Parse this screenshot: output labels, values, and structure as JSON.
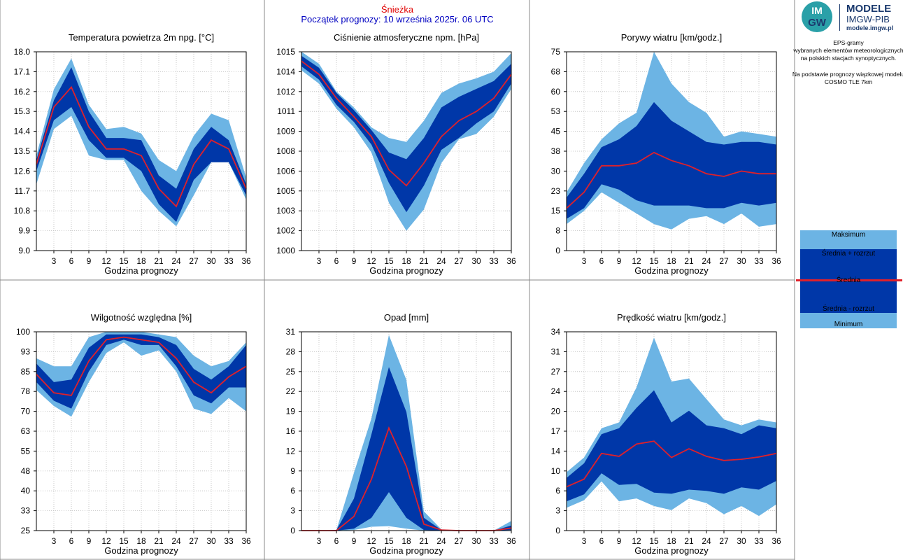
{
  "header": {
    "station": "Śnieżka",
    "run": "Początek prognozy: 10 września 2025r. 06 UTC"
  },
  "logo": {
    "mark_top": "IM",
    "mark_bottom": "GW",
    "title": "MODELE",
    "org": "IMGW-PIB",
    "site": "modele.imgw.pl"
  },
  "info": {
    "line1": "EPS-gramy",
    "line2": "wybranych elementów meteorologicznych",
    "line3": "na polskich stacjach  synoptycznych.",
    "line4": "Na podstawie prognozy wiązkowej modelu",
    "line5": "COSMO TLE 7km"
  },
  "legend": {
    "max": "Maksimum",
    "mean_plus": "Średnia + rozrzut",
    "mean": "Średnia",
    "mean_minus": "Średnia - rozrzut",
    "min": "Minimum"
  },
  "colors": {
    "outer_band": "#6cb4e4",
    "inner_band": "#0037a8",
    "mean_line": "#e0202a",
    "grid": "#bbbbbb"
  },
  "chart_data": [
    {
      "id": "temperature",
      "type": "area",
      "title": "Temperatura powietrza 2m npg. [°C]",
      "xlabel": "Godzina prognozy",
      "ylabel": "",
      "x": [
        0,
        3,
        6,
        9,
        12,
        15,
        18,
        21,
        24,
        27,
        30,
        33,
        36
      ],
      "xticks": [
        3,
        6,
        9,
        12,
        15,
        18,
        21,
        24,
        27,
        30,
        33,
        36
      ],
      "ylim": [
        9.0,
        18.0
      ],
      "yticks": [
        "9.0",
        "9.9",
        "10.8",
        "11.7",
        "12.6",
        "13.5",
        "14.4",
        "15.3",
        "16.2",
        "17.1",
        "18.0"
      ],
      "grid": true,
      "series": [
        {
          "name": "Maksimum",
          "values": [
            13.3,
            16.3,
            17.7,
            15.6,
            14.5,
            14.6,
            14.3,
            13.1,
            12.6,
            14.2,
            15.2,
            14.9,
            12.3
          ]
        },
        {
          "name": "Średnia + rozrzut",
          "values": [
            13.1,
            15.8,
            17.3,
            15.3,
            14.1,
            14.1,
            14.0,
            12.4,
            11.8,
            13.6,
            14.6,
            14.0,
            12.0
          ]
        },
        {
          "name": "Średnia",
          "values": [
            12.9,
            15.5,
            16.4,
            14.6,
            13.6,
            13.6,
            13.3,
            11.8,
            11.0,
            12.9,
            14.0,
            13.6,
            11.8
          ]
        },
        {
          "name": "Średnia - rozrzut",
          "values": [
            12.6,
            14.9,
            15.5,
            14.0,
            13.2,
            13.2,
            12.6,
            11.1,
            10.3,
            12.2,
            13.0,
            13.0,
            11.5
          ]
        },
        {
          "name": "Minimum",
          "values": [
            12.0,
            14.5,
            15.1,
            13.3,
            13.1,
            13.1,
            11.7,
            10.8,
            10.1,
            11.5,
            13.0,
            13.0,
            11.3
          ]
        }
      ]
    },
    {
      "id": "pressure",
      "type": "area",
      "title": "Ciśnienie atmosferyczne npm. [hPa]",
      "xlabel": "Godzina prognozy",
      "ylabel": "",
      "x": [
        0,
        3,
        6,
        9,
        12,
        15,
        18,
        21,
        24,
        27,
        30,
        33,
        36
      ],
      "xticks": [
        3,
        6,
        9,
        12,
        15,
        18,
        21,
        24,
        27,
        30,
        33,
        36
      ],
      "ylim": [
        1000,
        1015
      ],
      "yticks": [
        "1000",
        "1002",
        "1003",
        "1005",
        "1006",
        "1008",
        "1009",
        "1011",
        "1012",
        "1014",
        "1015"
      ],
      "grid": true,
      "series": [
        {
          "name": "Maksimum",
          "values": [
            1015.0,
            1014.1,
            1012.0,
            1010.8,
            1009.3,
            1008.5,
            1008.2,
            1009.8,
            1011.9,
            1012.6,
            1013.0,
            1013.5,
            1014.9
          ]
        },
        {
          "name": "Średnia + rozrzut",
          "values": [
            1014.7,
            1013.8,
            1011.9,
            1010.6,
            1009.1,
            1007.4,
            1006.9,
            1008.5,
            1010.8,
            1011.6,
            1012.2,
            1012.8,
            1014.1
          ]
        },
        {
          "name": "Średnia",
          "values": [
            1014.3,
            1013.3,
            1011.5,
            1010.1,
            1008.6,
            1006.1,
            1004.9,
            1006.6,
            1008.6,
            1009.8,
            1010.5,
            1011.5,
            1013.3
          ]
        },
        {
          "name": "Średnia - rozrzut",
          "values": [
            1013.9,
            1012.9,
            1011.0,
            1009.7,
            1008.0,
            1005.1,
            1002.9,
            1004.9,
            1007.6,
            1008.5,
            1009.6,
            1010.5,
            1012.6
          ]
        },
        {
          "name": "Minimum",
          "values": [
            1013.6,
            1012.6,
            1010.7,
            1009.3,
            1007.4,
            1003.6,
            1001.5,
            1003.1,
            1006.6,
            1008.4,
            1008.8,
            1010.1,
            1012.2
          ]
        }
      ]
    },
    {
      "id": "gusts",
      "type": "area",
      "title": "Porywy wiatru [km/godz.]",
      "xlabel": "Godzina prognozy",
      "ylabel": "",
      "x": [
        0,
        3,
        6,
        9,
        12,
        15,
        18,
        21,
        24,
        27,
        30,
        33,
        36
      ],
      "xticks": [
        3,
        6,
        9,
        12,
        15,
        18,
        21,
        24,
        27,
        30,
        33,
        36
      ],
      "ylim": [
        0,
        75
      ],
      "yticks": [
        "0",
        "8",
        "15",
        "23",
        "30",
        "38",
        "45",
        "53",
        "60",
        "68",
        "75"
      ],
      "grid": true,
      "series": [
        {
          "name": "Maksimum",
          "values": [
            22,
            33,
            42,
            48,
            52,
            75,
            63,
            56,
            52,
            43,
            45,
            44,
            43
          ]
        },
        {
          "name": "Średnia + rozrzut",
          "values": [
            20,
            29,
            39,
            42,
            47,
            56,
            49,
            45,
            41,
            40,
            41,
            41,
            40
          ]
        },
        {
          "name": "Średnia",
          "values": [
            16,
            22,
            32,
            32,
            33,
            37,
            34,
            32,
            29,
            28,
            30,
            29,
            29
          ]
        },
        {
          "name": "Średnia - rozrzut",
          "values": [
            12,
            16,
            25,
            23,
            19,
            17,
            17,
            17,
            16,
            16,
            18,
            17,
            18
          ]
        },
        {
          "name": "Minimum",
          "values": [
            10,
            15,
            22,
            18,
            14,
            10,
            8,
            12,
            13,
            10,
            14,
            9,
            10
          ]
        }
      ]
    },
    {
      "id": "humidity",
      "type": "area",
      "title": "Wilgotność względna [%]",
      "xlabel": "Godzina prognozy",
      "ylabel": "",
      "x": [
        0,
        3,
        6,
        9,
        12,
        15,
        18,
        21,
        24,
        27,
        30,
        33,
        36
      ],
      "xticks": [
        3,
        6,
        9,
        12,
        15,
        18,
        21,
        24,
        27,
        30,
        33,
        36
      ],
      "ylim": [
        25,
        100
      ],
      "yticks": [
        "25",
        "33",
        "40",
        "48",
        "55",
        "63",
        "70",
        "78",
        "85",
        "93",
        "100"
      ],
      "grid": true,
      "series": [
        {
          "name": "Maksimum",
          "values": [
            90,
            87,
            87,
            98,
            100,
            100,
            100,
            99,
            98,
            91,
            87,
            89,
            96
          ]
        },
        {
          "name": "Średnia + rozrzut",
          "values": [
            88,
            81,
            82,
            94,
            99,
            99,
            99,
            98,
            95,
            86,
            82,
            87,
            95
          ]
        },
        {
          "name": "Średnia",
          "values": [
            84,
            77,
            76,
            89,
            97,
            98,
            97,
            96,
            90,
            81,
            77,
            83,
            87
          ]
        },
        {
          "name": "Średnia - rozrzut",
          "values": [
            81,
            74,
            71,
            85,
            95,
            97,
            95,
            95,
            87,
            76,
            73,
            79,
            79
          ]
        },
        {
          "name": "Minimum",
          "values": [
            78,
            72,
            68,
            81,
            92,
            96,
            91,
            93,
            85,
            71,
            69,
            75,
            70
          ]
        }
      ]
    },
    {
      "id": "precipitation",
      "type": "area",
      "title": "Opad [mm]",
      "xlabel": "Godzina prognozy",
      "ylabel": "",
      "x": [
        0,
        3,
        6,
        9,
        12,
        15,
        18,
        21,
        24,
        27,
        30,
        33,
        36
      ],
      "xticks": [
        3,
        6,
        9,
        12,
        15,
        18,
        21,
        24,
        27,
        30,
        33,
        36
      ],
      "ylim": [
        0,
        31
      ],
      "yticks": [
        "0",
        "3",
        "6",
        "9",
        "12",
        "16",
        "19",
        "22",
        "25",
        "28",
        "31"
      ],
      "grid": true,
      "series": [
        {
          "name": "Maksimum",
          "values": [
            0,
            0,
            0.1,
            9,
            17.5,
            30.5,
            23.5,
            3,
            0.2,
            0,
            0,
            0,
            1.5
          ]
        },
        {
          "name": "Średnia + rozrzut",
          "values": [
            0,
            0,
            0.1,
            5,
            15,
            25.5,
            18.5,
            2,
            0.1,
            0,
            0,
            0,
            0.8
          ]
        },
        {
          "name": "Średnia",
          "values": [
            0,
            0,
            0,
            2.2,
            8,
            16,
            10,
            1,
            0.1,
            0,
            0,
            0,
            0.4
          ]
        },
        {
          "name": "Średnia - rozrzut",
          "values": [
            0,
            0,
            0,
            0.3,
            2,
            6,
            2,
            0.1,
            0,
            0,
            0,
            0,
            0.1
          ]
        },
        {
          "name": "Minimum",
          "values": [
            0,
            0,
            0,
            0.1,
            0.6,
            0.7,
            0.3,
            0,
            0,
            0,
            0,
            0,
            0
          ]
        }
      ]
    },
    {
      "id": "wind_speed",
      "type": "area",
      "title": "Prędkość wiatru [km/godz.]",
      "xlabel": "Godzina prognozy",
      "ylabel": "",
      "x": [
        0,
        3,
        6,
        9,
        12,
        15,
        18,
        21,
        24,
        27,
        30,
        33,
        36
      ],
      "xticks": [
        3,
        6,
        9,
        12,
        15,
        18,
        21,
        24,
        27,
        30,
        33,
        36
      ],
      "ylim": [
        0,
        34
      ],
      "yticks": [
        "0",
        "3",
        "6",
        "10",
        "14",
        "17",
        "20",
        "24",
        "27",
        "31",
        "34"
      ],
      "grid": true,
      "series": [
        {
          "name": "Maksimum",
          "values": [
            10,
            12.5,
            17.5,
            18.5,
            24.5,
            33,
            25.5,
            26,
            22.5,
            19,
            18,
            19,
            18.5
          ]
        },
        {
          "name": "Średnia + rozrzut",
          "values": [
            9,
            11.5,
            16.5,
            17.5,
            21,
            24,
            18.5,
            20.5,
            18,
            17.5,
            16.5,
            18,
            17.5
          ]
        },
        {
          "name": "Średnia",
          "values": [
            7.5,
            8.8,
            13.2,
            12.7,
            14.8,
            15.3,
            12.5,
            14,
            12.7,
            12,
            12.2,
            12.6,
            13.2
          ]
        },
        {
          "name": "Średnia - rozrzut",
          "values": [
            5,
            6.2,
            9.8,
            7.8,
            8,
            6.5,
            6.3,
            7,
            6.8,
            6.3,
            7.4,
            7,
            8.5
          ]
        },
        {
          "name": "Minimum",
          "values": [
            3.9,
            5.2,
            8.4,
            5,
            5.5,
            4.2,
            3.5,
            5.5,
            4.7,
            2.8,
            4.2,
            2.5,
            4.5
          ]
        }
      ]
    }
  ]
}
